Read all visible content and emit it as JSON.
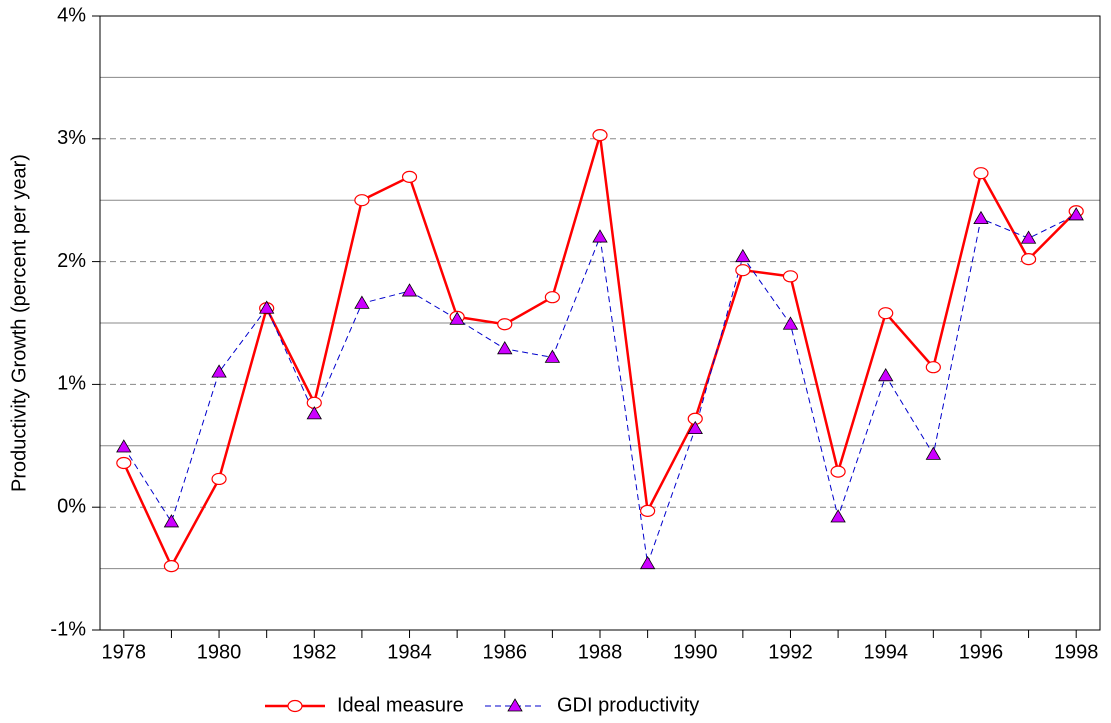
{
  "chart_data": {
    "type": "line",
    "y_label": "Productivity Growth (percent per year)",
    "x": [
      1978,
      1979,
      1980,
      1981,
      1982,
      1983,
      1984,
      1985,
      1986,
      1987,
      1988,
      1989,
      1990,
      1991,
      1992,
      1993,
      1994,
      1995,
      1996,
      1997,
      1998
    ],
    "xlim": [
      1977.5,
      1998.5
    ],
    "xticks": [
      1978,
      1980,
      1982,
      1984,
      1986,
      1988,
      1990,
      1992,
      1994,
      1996,
      1998
    ],
    "ylim": [
      -1,
      4
    ],
    "yticks": [
      {
        "value": -1,
        "label": "-1%"
      },
      {
        "value": 0,
        "label": "0%"
      },
      {
        "value": 1,
        "label": "1%"
      },
      {
        "value": 2,
        "label": "2%"
      },
      {
        "value": 3,
        "label": "3%"
      },
      {
        "value": 4,
        "label": "4%"
      }
    ],
    "minor_yticks": [
      -0.5,
      0.5,
      1.5,
      2.5,
      3.5
    ],
    "grid": true,
    "legend": "bottom",
    "series": [
      {
        "name": "Ideal measure",
        "color": "#ff0000",
        "line_style": "solid",
        "marker": "circle",
        "values": [
          0.36,
          -0.48,
          0.23,
          1.62,
          0.85,
          2.5,
          2.69,
          1.55,
          1.49,
          1.71,
          3.03,
          -0.03,
          0.72,
          1.93,
          1.88,
          0.29,
          1.58,
          1.14,
          2.72,
          2.02,
          2.41
        ]
      },
      {
        "name": "GDI productivity",
        "color": "#0000cc",
        "marker_color": "#cc00ff",
        "line_style": "dashed",
        "marker": "triangle",
        "values": [
          0.49,
          -0.12,
          1.1,
          1.62,
          0.76,
          1.66,
          1.76,
          1.53,
          1.29,
          1.22,
          2.2,
          -0.46,
          0.64,
          2.04,
          1.49,
          -0.08,
          1.07,
          0.43,
          2.35,
          2.19,
          2.38
        ]
      }
    ]
  }
}
